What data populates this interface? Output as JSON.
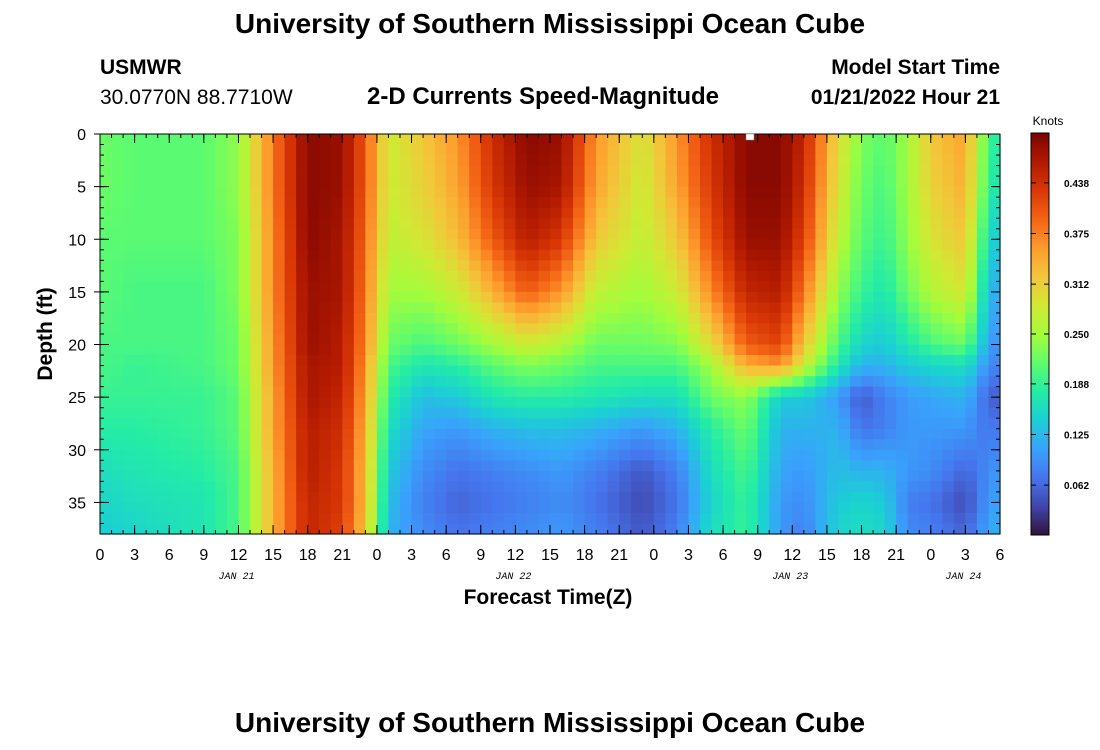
{
  "header": {
    "title": "University of Southern Mississippi Ocean Cube",
    "station": "USMWR",
    "coords": "30.0770N  88.7710W",
    "subtitle": "2-D Currents Speed-Magnitude",
    "model_label": "Model Start Time",
    "model_time": "01/21/2022 Hour 21"
  },
  "footer": {
    "title": "University of Southern Mississippi Ocean Cube"
  },
  "chart_data": {
    "type": "heatmap",
    "title": "2-D Currents Speed-Magnitude",
    "xlabel": "Forecast Time(Z)",
    "ylabel": "Depth (ft)",
    "x_unit": "hours since 01/21/2022 00Z",
    "xlim": [
      0,
      78
    ],
    "ylim": [
      38,
      0
    ],
    "x_ticks": [
      {
        "hour": 0,
        "label": "0"
      },
      {
        "hour": 3,
        "label": "3"
      },
      {
        "hour": 6,
        "label": "6"
      },
      {
        "hour": 9,
        "label": "9"
      },
      {
        "hour": 12,
        "label": "12"
      },
      {
        "hour": 15,
        "label": "15"
      },
      {
        "hour": 18,
        "label": "18"
      },
      {
        "hour": 21,
        "label": "21"
      },
      {
        "hour": 24,
        "label": "0"
      },
      {
        "hour": 27,
        "label": "3"
      },
      {
        "hour": 30,
        "label": "6"
      },
      {
        "hour": 33,
        "label": "9"
      },
      {
        "hour": 36,
        "label": "12"
      },
      {
        "hour": 39,
        "label": "15"
      },
      {
        "hour": 42,
        "label": "18"
      },
      {
        "hour": 45,
        "label": "21"
      },
      {
        "hour": 48,
        "label": "0"
      },
      {
        "hour": 51,
        "label": "3"
      },
      {
        "hour": 54,
        "label": "6"
      },
      {
        "hour": 57,
        "label": "9"
      },
      {
        "hour": 60,
        "label": "12"
      },
      {
        "hour": 63,
        "label": "15"
      },
      {
        "hour": 66,
        "label": "18"
      },
      {
        "hour": 69,
        "label": "21"
      },
      {
        "hour": 72,
        "label": "0"
      },
      {
        "hour": 75,
        "label": "3"
      },
      {
        "hour": 78,
        "label": "6"
      }
    ],
    "date_labels": [
      {
        "hour": 12,
        "label": "JAN 21"
      },
      {
        "hour": 36,
        "label": "JAN 22"
      },
      {
        "hour": 60,
        "label": "JAN 23"
      },
      {
        "hour": 75,
        "label": "JAN 24"
      }
    ],
    "y_ticks": [
      0,
      5,
      10,
      15,
      20,
      25,
      30,
      35
    ],
    "colorbar": {
      "label": "Knots",
      "min": 0.0,
      "max": 0.5,
      "ticks": [
        "0.438",
        "0.375",
        "0.312",
        "0.250",
        "0.188",
        "0.125",
        "0.062"
      ],
      "colors": [
        "#30123b",
        "#4145ab",
        "#4675ed",
        "#39a2fc",
        "#1bcfd4",
        "#24eca6",
        "#61fc6c",
        "#a4fc3b",
        "#d1e834",
        "#f3c63a",
        "#fe9b2d",
        "#f36315",
        "#d93806",
        "#b11901",
        "#7a0402"
      ]
    },
    "depth_profile": [
      0,
      5,
      10,
      15,
      20,
      22,
      25,
      28,
      32,
      35,
      38
    ],
    "columns": [
      {
        "hour": 0,
        "speeds": [
          0.22,
          0.22,
          0.21,
          0.21,
          0.2,
          0.2,
          0.19,
          0.18,
          0.16,
          0.15,
          0.14
        ]
      },
      {
        "hour": 3,
        "speeds": [
          0.21,
          0.21,
          0.21,
          0.2,
          0.2,
          0.19,
          0.19,
          0.18,
          0.17,
          0.16,
          0.15
        ]
      },
      {
        "hour": 9,
        "speeds": [
          0.21,
          0.21,
          0.21,
          0.2,
          0.2,
          0.2,
          0.19,
          0.19,
          0.18,
          0.17,
          0.17
        ]
      },
      {
        "hour": 12,
        "speeds": [
          0.24,
          0.24,
          0.23,
          0.23,
          0.22,
          0.22,
          0.21,
          0.21,
          0.2,
          0.2,
          0.2
        ]
      },
      {
        "hour": 15,
        "speeds": [
          0.38,
          0.38,
          0.37,
          0.37,
          0.36,
          0.36,
          0.35,
          0.35,
          0.34,
          0.34,
          0.34
        ]
      },
      {
        "hour": 18,
        "speeds": [
          0.49,
          0.49,
          0.49,
          0.48,
          0.48,
          0.47,
          0.47,
          0.46,
          0.46,
          0.45,
          0.45
        ]
      },
      {
        "hour": 21,
        "speeds": [
          0.48,
          0.48,
          0.47,
          0.47,
          0.46,
          0.46,
          0.45,
          0.44,
          0.43,
          0.43,
          0.42
        ]
      },
      {
        "hour": 23,
        "speeds": [
          0.4,
          0.4,
          0.39,
          0.38,
          0.37,
          0.36,
          0.35,
          0.34,
          0.33,
          0.33,
          0.32
        ]
      },
      {
        "hour": 25,
        "speeds": [
          0.28,
          0.28,
          0.27,
          0.25,
          0.22,
          0.2,
          0.18,
          0.16,
          0.14,
          0.13,
          0.12
        ]
      },
      {
        "hour": 28,
        "speeds": [
          0.32,
          0.31,
          0.29,
          0.25,
          0.2,
          0.17,
          0.13,
          0.11,
          0.09,
          0.08,
          0.09
        ]
      },
      {
        "hour": 31,
        "speeds": [
          0.36,
          0.35,
          0.33,
          0.28,
          0.22,
          0.18,
          0.14,
          0.1,
          0.07,
          0.06,
          0.07
        ]
      },
      {
        "hour": 34,
        "speeds": [
          0.44,
          0.43,
          0.4,
          0.34,
          0.25,
          0.21,
          0.17,
          0.12,
          0.08,
          0.07,
          0.08
        ]
      },
      {
        "hour": 37,
        "speeds": [
          0.49,
          0.48,
          0.46,
          0.4,
          0.28,
          0.23,
          0.18,
          0.13,
          0.09,
          0.08,
          0.09
        ]
      },
      {
        "hour": 40,
        "speeds": [
          0.48,
          0.47,
          0.43,
          0.36,
          0.26,
          0.22,
          0.18,
          0.13,
          0.1,
          0.09,
          0.1
        ]
      },
      {
        "hour": 43,
        "speeds": [
          0.36,
          0.35,
          0.32,
          0.27,
          0.22,
          0.2,
          0.17,
          0.12,
          0.08,
          0.07,
          0.08
        ]
      },
      {
        "hour": 47,
        "speeds": [
          0.29,
          0.28,
          0.27,
          0.25,
          0.22,
          0.2,
          0.16,
          0.1,
          0.05,
          0.04,
          0.05
        ]
      },
      {
        "hour": 50,
        "speeds": [
          0.36,
          0.35,
          0.32,
          0.28,
          0.23,
          0.2,
          0.16,
          0.12,
          0.08,
          0.07,
          0.08
        ]
      },
      {
        "hour": 53,
        "speeds": [
          0.44,
          0.43,
          0.41,
          0.37,
          0.3,
          0.25,
          0.22,
          0.18,
          0.16,
          0.15,
          0.16
        ]
      },
      {
        "hour": 56,
        "speeds": [
          0.49,
          0.49,
          0.48,
          0.45,
          0.4,
          0.34,
          0.24,
          0.22,
          0.2,
          0.19,
          0.19
        ]
      },
      {
        "hour": 59,
        "speeds": [
          0.49,
          0.49,
          0.48,
          0.46,
          0.42,
          0.36,
          0.14,
          0.12,
          0.11,
          0.1,
          0.1
        ]
      },
      {
        "hour": 61,
        "speeds": [
          0.45,
          0.44,
          0.42,
          0.38,
          0.32,
          0.28,
          0.14,
          0.12,
          0.1,
          0.09,
          0.08
        ]
      },
      {
        "hour": 64,
        "speeds": [
          0.3,
          0.29,
          0.27,
          0.24,
          0.2,
          0.17,
          0.1,
          0.12,
          0.13,
          0.14,
          0.15
        ]
      },
      {
        "hour": 66,
        "speeds": [
          0.23,
          0.22,
          0.21,
          0.19,
          0.15,
          0.12,
          0.05,
          0.07,
          0.12,
          0.15,
          0.16
        ]
      },
      {
        "hour": 68,
        "speeds": [
          0.21,
          0.2,
          0.19,
          0.17,
          0.14,
          0.12,
          0.08,
          0.08,
          0.12,
          0.14,
          0.15
        ]
      },
      {
        "hour": 70,
        "speeds": [
          0.25,
          0.25,
          0.24,
          0.22,
          0.17,
          0.14,
          0.1,
          0.1,
          0.1,
          0.08,
          0.09
        ]
      },
      {
        "hour": 72,
        "speeds": [
          0.32,
          0.31,
          0.29,
          0.26,
          0.2,
          0.15,
          0.11,
          0.1,
          0.09,
          0.07,
          0.08
        ]
      },
      {
        "hour": 75,
        "speeds": [
          0.35,
          0.34,
          0.32,
          0.29,
          0.22,
          0.16,
          0.12,
          0.1,
          0.06,
          0.04,
          0.06
        ]
      },
      {
        "hour": 77,
        "speeds": [
          0.2,
          0.19,
          0.16,
          0.13,
          0.11,
          0.09,
          0.06,
          0.07,
          0.09,
          0.1,
          0.11
        ]
      },
      {
        "hour": 78,
        "speeds": [
          0.17,
          0.16,
          0.13,
          0.11,
          0.09,
          0.08,
          0.05,
          0.08,
          0.1,
          0.11,
          0.12
        ]
      }
    ]
  }
}
